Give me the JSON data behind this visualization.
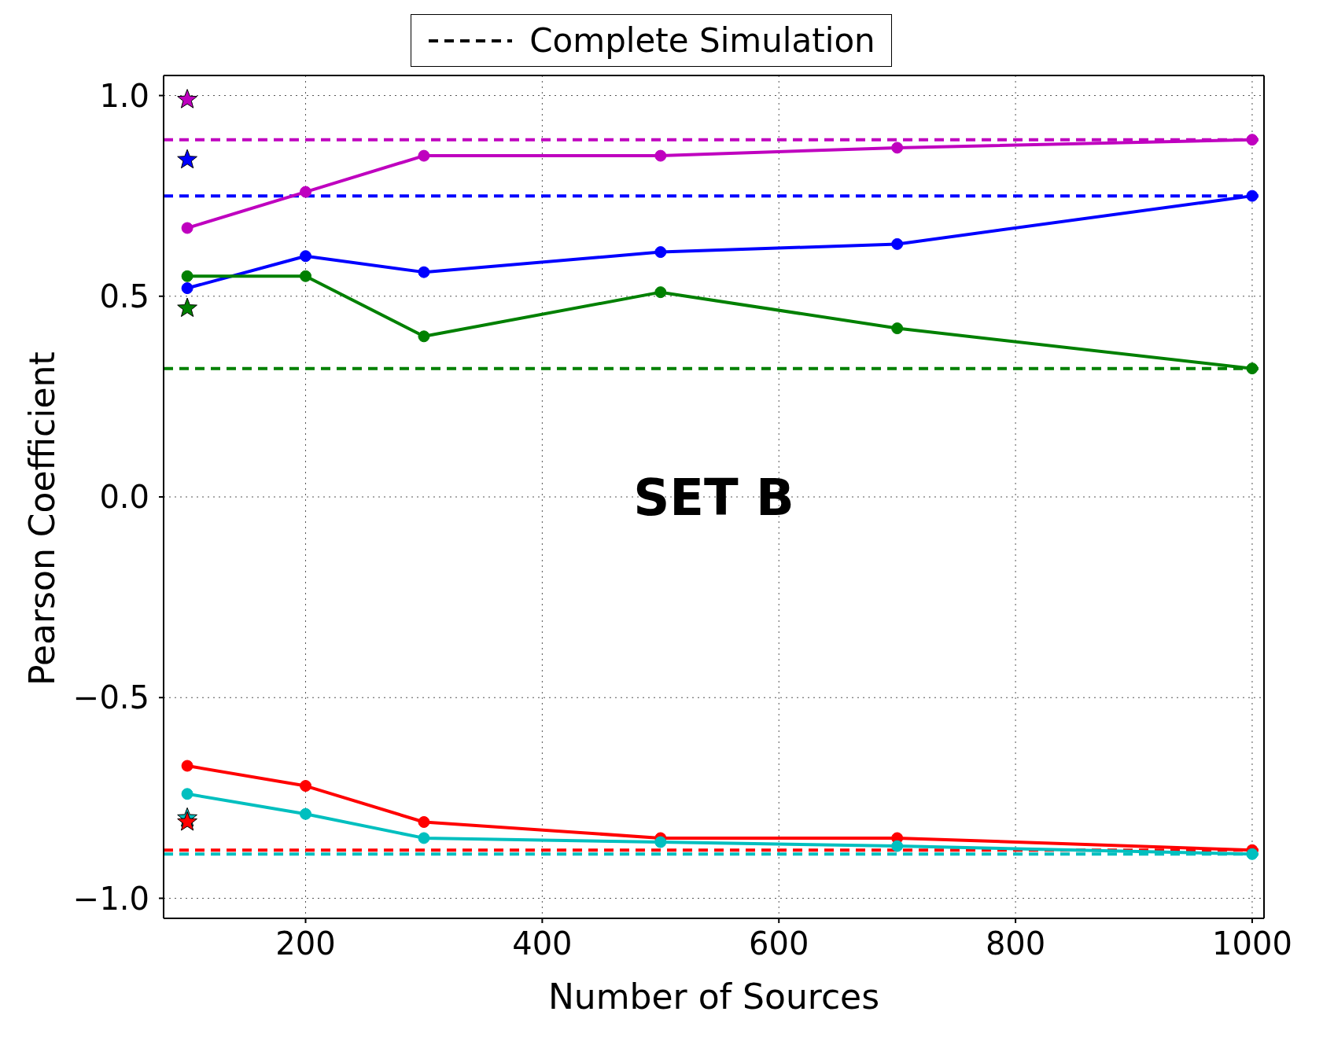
{
  "chart_data": {
    "type": "line",
    "xlabel": "Number of Sources",
    "ylabel": "Pearson Coefficient",
    "annotations": [
      "SET B"
    ],
    "xlim": [
      80,
      1010
    ],
    "xticks": [
      200,
      400,
      600,
      800,
      1000
    ],
    "ylim": [
      -1.05,
      1.05
    ],
    "yticks": [
      {
        "value": -1.0,
        "label": "−1.0"
      },
      {
        "value": -0.5,
        "label": "−0.5"
      },
      {
        "value": 0,
        "label": "0.0"
      },
      {
        "value": 0.5,
        "label": "0.5"
      },
      {
        "value": 1.0,
        "label": "1.0"
      }
    ],
    "grid": true,
    "legend": "top",
    "series": [
      {
        "name": "Complete Simulation",
        "color": "#000000",
        "line_style": "dashed",
        "marker": "none"
      },
      {
        "color": "#bf00bf",
        "marker": "circle",
        "x": [
          100,
          200,
          300,
          500,
          700,
          1000
        ],
        "values": [
          0.67,
          0.76,
          0.85,
          0.85,
          0.87,
          0.89
        ]
      },
      {
        "color": "#0000ff",
        "marker": "circle",
        "x": [
          100,
          200,
          300,
          500,
          700,
          1000
        ],
        "values": [
          0.52,
          0.6,
          0.56,
          0.61,
          0.63,
          0.75
        ]
      },
      {
        "color": "#008000",
        "marker": "circle",
        "x": [
          100,
          200,
          300,
          500,
          700,
          1000
        ],
        "values": [
          0.55,
          0.55,
          0.4,
          0.51,
          0.42,
          0.32
        ]
      },
      {
        "color": "#ff0000",
        "marker": "circle",
        "x": [
          100,
          200,
          300,
          500,
          700,
          1000
        ],
        "values": [
          -0.67,
          -0.72,
          -0.81,
          -0.85,
          -0.85,
          -0.88
        ]
      },
      {
        "color": "#00bfbf",
        "marker": "circle",
        "x": [
          100,
          200,
          300,
          500,
          700,
          1000
        ],
        "values": [
          -0.74,
          -0.79,
          -0.85,
          -0.86,
          -0.87,
          -0.89
        ]
      },
      {
        "type": "scatter",
        "color": "#bf00bf",
        "marker": "star",
        "x": [
          100
        ],
        "values": [
          0.99
        ]
      },
      {
        "type": "scatter",
        "color": "#0000ff",
        "marker": "star",
        "x": [
          100
        ],
        "values": [
          0.84
        ]
      },
      {
        "type": "scatter",
        "color": "#008000",
        "marker": "star",
        "x": [
          100
        ],
        "values": [
          0.47
        ]
      },
      {
        "type": "scatter",
        "color": "#00bfbf",
        "marker": "star",
        "x": [
          100
        ],
        "values": [
          -0.8
        ]
      },
      {
        "type": "scatter",
        "color": "#ff0000",
        "marker": "star",
        "x": [
          100
        ],
        "values": [
          -0.81
        ]
      }
    ],
    "ref_lines": [
      {
        "axis": "y",
        "value": 0.89,
        "color": "#bf00bf",
        "line_style": "dashed"
      },
      {
        "axis": "y",
        "value": 0.75,
        "color": "#0000ff",
        "line_style": "dashed"
      },
      {
        "axis": "y",
        "value": 0.32,
        "color": "#008000",
        "line_style": "dashed"
      },
      {
        "axis": "y",
        "value": -0.88,
        "color": "#ff0000",
        "line_style": "dashed"
      },
      {
        "axis": "y",
        "value": -0.89,
        "color": "#00bfbf",
        "line_style": "dashed"
      }
    ]
  }
}
